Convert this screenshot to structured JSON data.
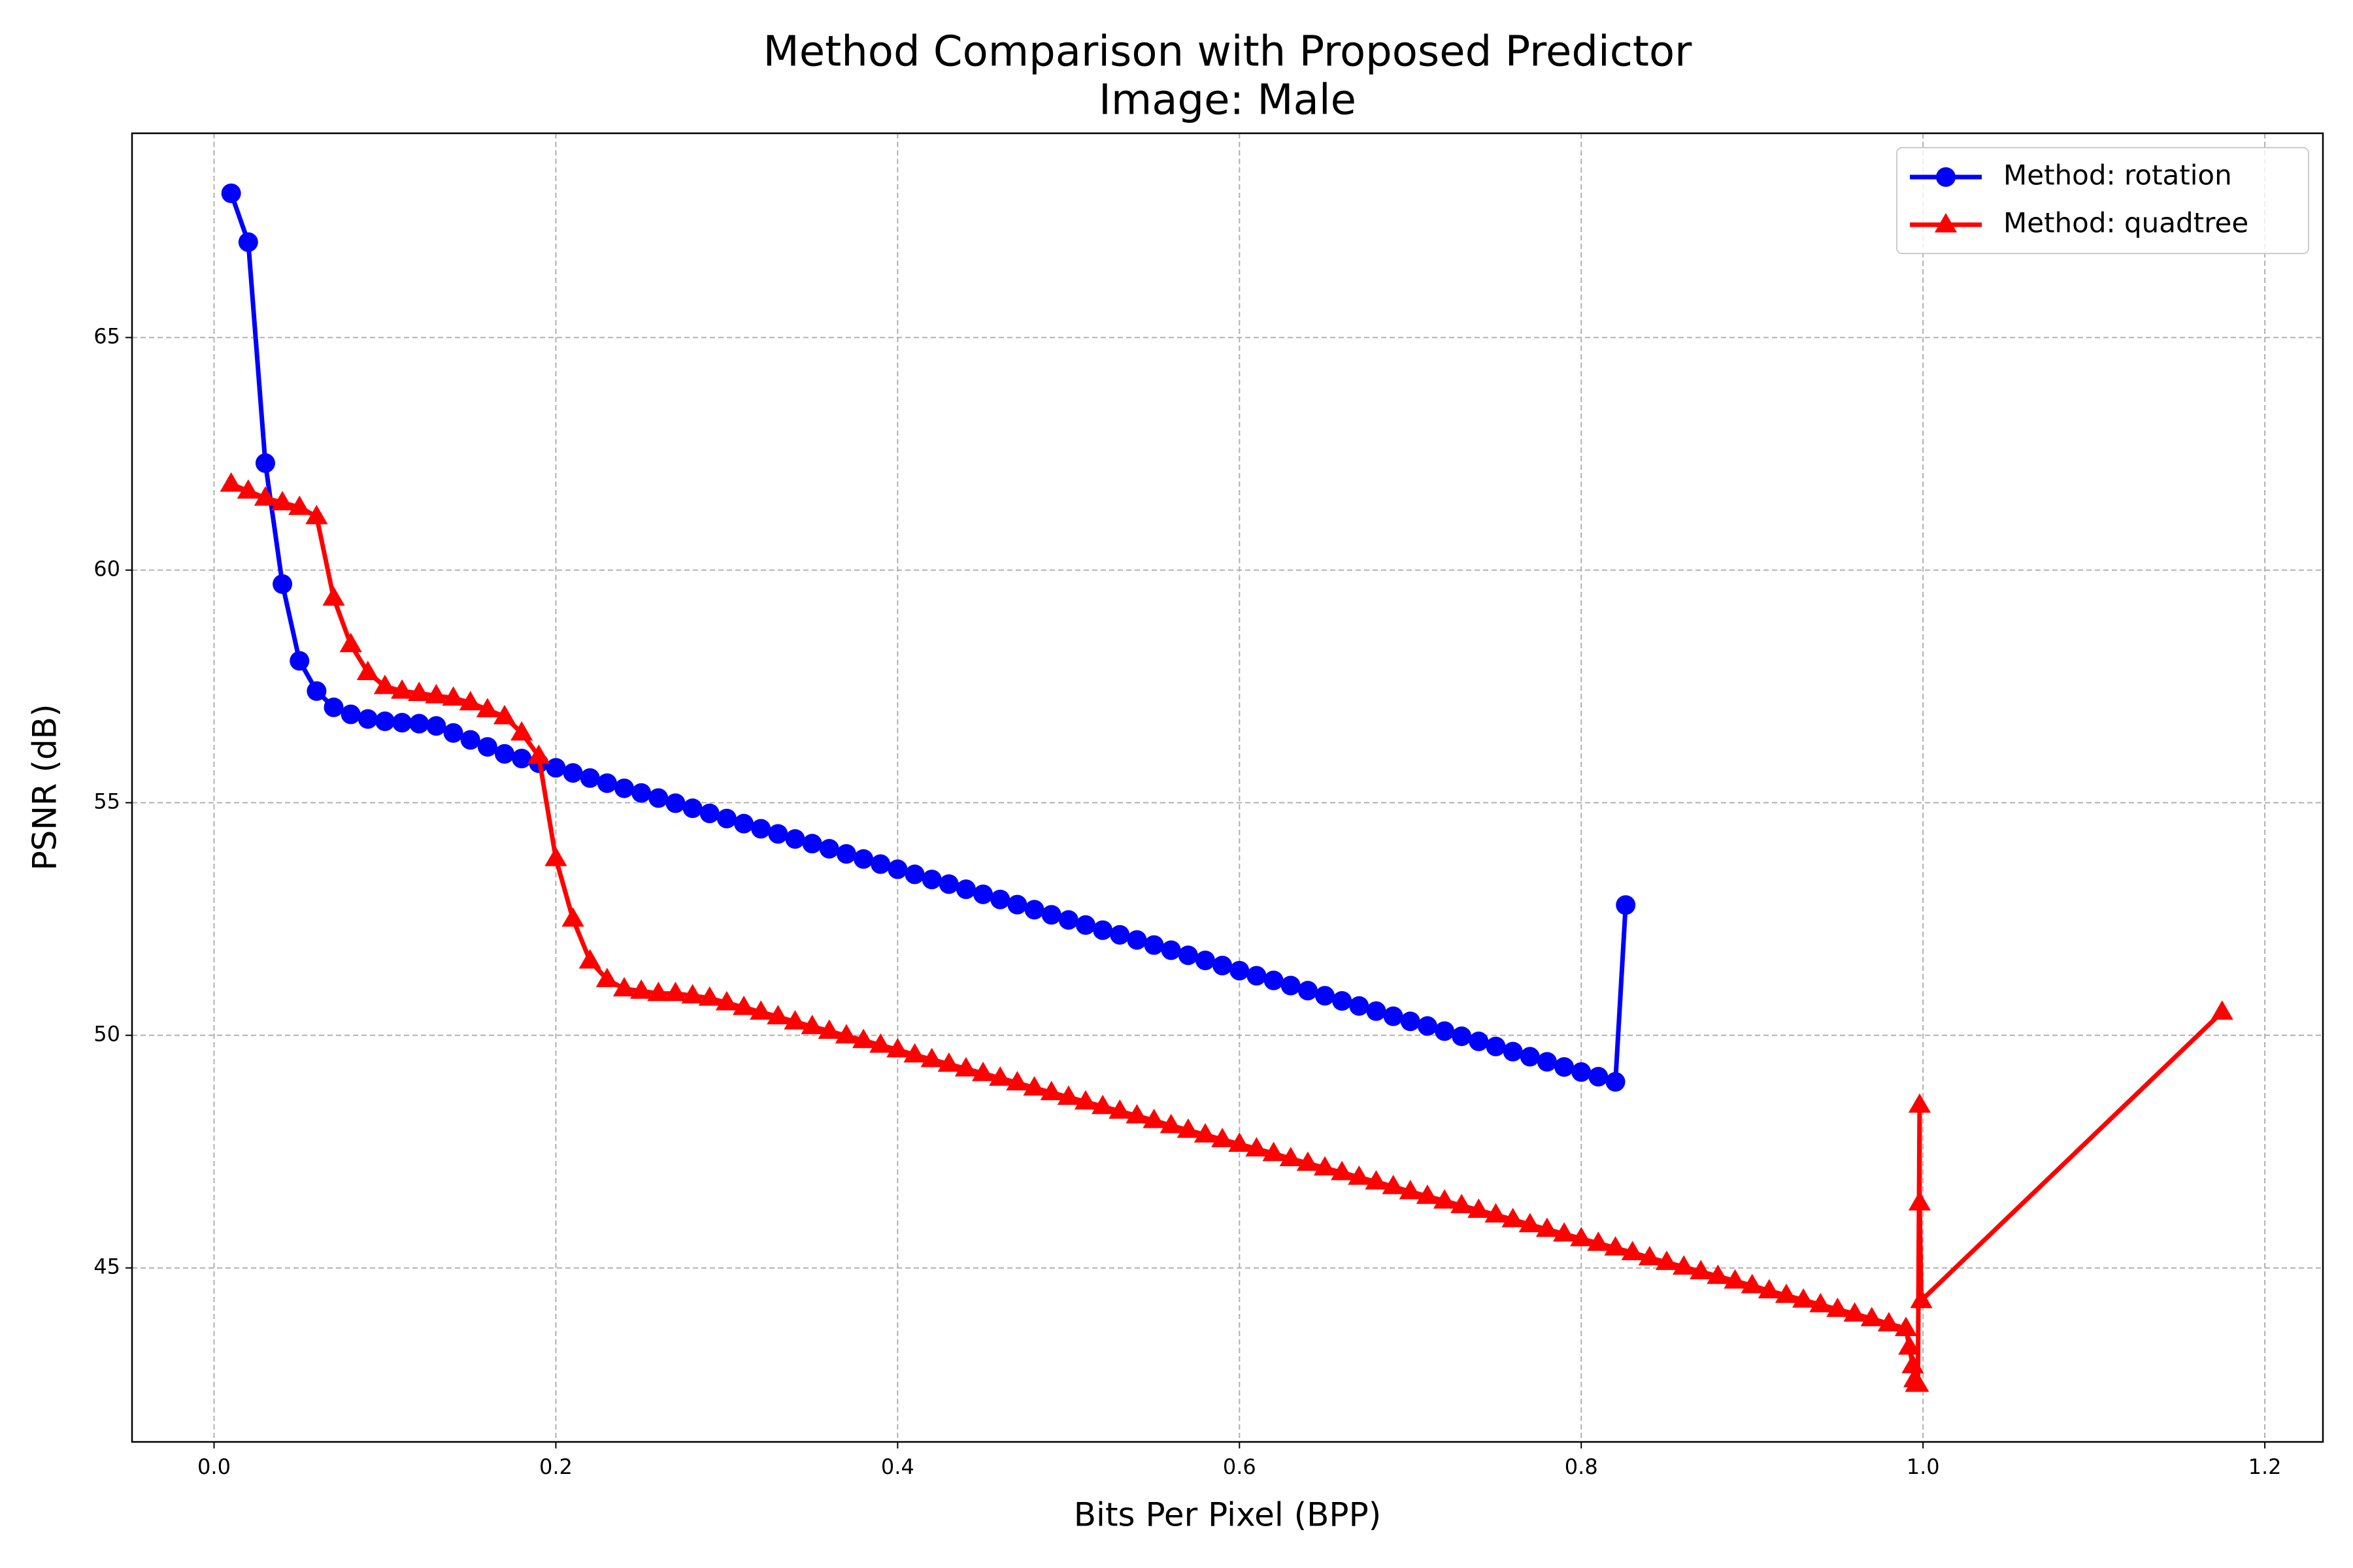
{
  "chart_data": {
    "type": "line",
    "title": "Method Comparison with Proposed Predictor",
    "subtitle": "Image: Male",
    "xlabel": "Bits Per Pixel (BPP)",
    "ylabel": "PSNR (dB)",
    "xlim": [
      -0.048,
      1.234
    ],
    "ylim": [
      41.26,
      69.39
    ],
    "xticks": [
      {
        "value": 0,
        "label": "0.0"
      },
      0.2,
      0.4,
      0.6,
      0.8,
      {
        "value": 1,
        "label": "1.0"
      },
      1.2
    ],
    "yticks": [
      45,
      50,
      55,
      60,
      65
    ],
    "grid": true,
    "legend": "upper right",
    "series": [
      {
        "name": "Method: rotation",
        "color": "#0000ff",
        "marker": "circle",
        "x": [
          0.01,
          0.02,
          0.03,
          0.04,
          0.05,
          0.06,
          0.07,
          0.08,
          0.09,
          0.1,
          0.11,
          0.12,
          0.13,
          0.14,
          0.15,
          0.16,
          0.17,
          0.18,
          0.19,
          0.2,
          0.21,
          0.22,
          0.23,
          0.24,
          0.25,
          0.26,
          0.27,
          0.28,
          0.29,
          0.3,
          0.31,
          0.32,
          0.33,
          0.34,
          0.35,
          0.36,
          0.37,
          0.38,
          0.39,
          0.4,
          0.41,
          0.42,
          0.43,
          0.44,
          0.45,
          0.46,
          0.47,
          0.48,
          0.49,
          0.5,
          0.51,
          0.52,
          0.53,
          0.54,
          0.55,
          0.56,
          0.57,
          0.58,
          0.59,
          0.6,
          0.61,
          0.62,
          0.63,
          0.64,
          0.65,
          0.66,
          0.67,
          0.68,
          0.69,
          0.7,
          0.71,
          0.72,
          0.73,
          0.74,
          0.75,
          0.76,
          0.77,
          0.78,
          0.79,
          0.8,
          0.81,
          0.82,
          0.826
        ],
        "values": [
          68.1,
          67.05,
          62.3,
          59.7,
          58.05,
          57.4,
          57.05,
          56.9,
          56.8,
          56.75,
          56.72,
          56.7,
          56.65,
          56.5,
          56.35,
          56.2,
          56.05,
          55.95,
          55.85,
          55.75,
          55.64,
          55.53,
          55.42,
          55.31,
          55.21,
          55.1,
          54.99,
          54.88,
          54.77,
          54.66,
          54.55,
          54.44,
          54.33,
          54.22,
          54.12,
          54.01,
          53.9,
          53.79,
          53.68,
          53.57,
          53.46,
          53.35,
          53.25,
          53.14,
          53.03,
          52.92,
          52.81,
          52.7,
          52.59,
          52.48,
          52.37,
          52.26,
          52.16,
          52.05,
          51.94,
          51.83,
          51.72,
          51.61,
          51.5,
          51.39,
          51.28,
          51.18,
          51.07,
          50.96,
          50.85,
          50.74,
          50.63,
          50.52,
          50.41,
          50.3,
          50.2,
          50.09,
          49.98,
          49.87,
          49.76,
          49.65,
          49.54,
          49.43,
          49.32,
          49.21,
          49.11,
          49.0,
          52.8
        ]
      },
      {
        "name": "Method: quadtree",
        "color": "#ff0000",
        "marker": "triangle",
        "x": [
          0.01,
          0.02,
          0.03,
          0.04,
          0.05,
          0.06,
          0.07,
          0.08,
          0.09,
          0.1,
          0.11,
          0.12,
          0.13,
          0.14,
          0.15,
          0.16,
          0.17,
          0.18,
          0.19,
          0.2,
          0.21,
          0.22,
          0.23,
          0.24,
          0.25,
          0.26,
          0.27,
          0.28,
          0.29,
          0.3,
          0.31,
          0.32,
          0.33,
          0.34,
          0.35,
          0.36,
          0.37,
          0.38,
          0.39,
          0.4,
          0.41,
          0.42,
          0.43,
          0.44,
          0.45,
          0.46,
          0.47,
          0.48,
          0.49,
          0.5,
          0.51,
          0.52,
          0.53,
          0.54,
          0.55,
          0.56,
          0.57,
          0.58,
          0.59,
          0.6,
          0.61,
          0.62,
          0.63,
          0.64,
          0.65,
          0.66,
          0.67,
          0.68,
          0.69,
          0.7,
          0.71,
          0.72,
          0.73,
          0.74,
          0.75,
          0.76,
          0.77,
          0.78,
          0.79,
          0.8,
          0.81,
          0.82,
          0.83,
          0.84,
          0.85,
          0.86,
          0.87,
          0.88,
          0.89,
          0.9,
          0.91,
          0.92,
          0.93,
          0.94,
          0.95,
          0.96,
          0.97,
          0.98,
          0.99,
          0.992,
          0.994,
          0.995,
          0.996,
          0.997,
          0.998,
          0.998,
          0.999,
          1.175
        ],
        "values": [
          61.85,
          61.7,
          61.55,
          61.45,
          61.35,
          61.15,
          59.4,
          58.4,
          57.8,
          57.5,
          57.4,
          57.35,
          57.3,
          57.25,
          57.15,
          57.0,
          56.85,
          56.5,
          56.0,
          53.8,
          52.5,
          51.6,
          51.2,
          51.0,
          50.95,
          50.9,
          50.9,
          50.85,
          50.8,
          50.7,
          50.6,
          50.5,
          50.4,
          50.29,
          50.19,
          50.09,
          49.99,
          49.89,
          49.79,
          49.69,
          49.58,
          49.48,
          49.38,
          49.28,
          49.18,
          49.08,
          48.98,
          48.87,
          48.77,
          48.67,
          48.57,
          48.47,
          48.37,
          48.27,
          48.17,
          48.06,
          47.96,
          47.86,
          47.76,
          47.66,
          47.56,
          47.46,
          47.35,
          47.25,
          47.15,
          47.05,
          46.95,
          46.85,
          46.75,
          46.64,
          46.54,
          46.44,
          46.34,
          46.24,
          46.14,
          46.04,
          45.93,
          45.83,
          45.73,
          45.63,
          45.53,
          45.43,
          45.33,
          45.22,
          45.12,
          45.02,
          44.92,
          44.82,
          44.72,
          44.62,
          44.51,
          44.41,
          44.31,
          44.21,
          44.11,
          44.01,
          43.91,
          43.8,
          43.7,
          43.3,
          42.9,
          42.6,
          42.5,
          42.5,
          48.5,
          46.4,
          44.3,
          50.5
        ]
      }
    ]
  }
}
